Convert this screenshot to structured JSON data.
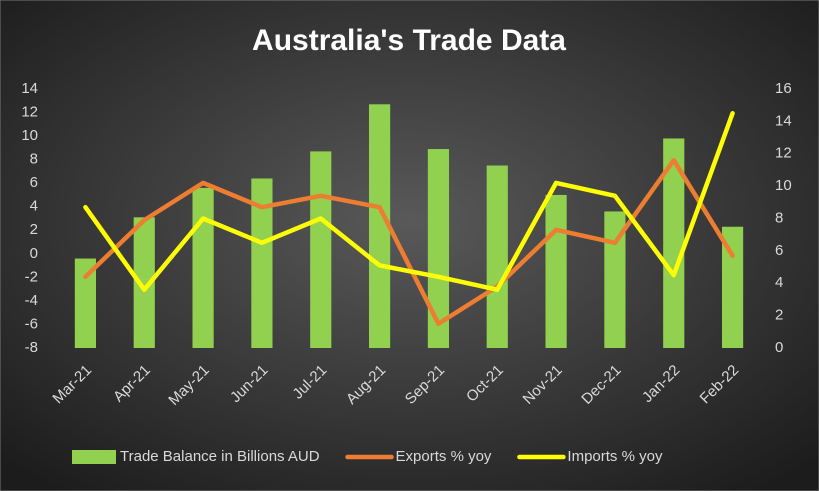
{
  "chart_data": {
    "type": "combo",
    "title": "Australia's Trade Data",
    "categories": [
      "Mar-21",
      "Apr-21",
      "May-21",
      "Jun-21",
      "Jul-21",
      "Aug-21",
      "Sep-21",
      "Oct-21",
      "Nov-21",
      "Dec-21",
      "Jan-22",
      "Feb-22"
    ],
    "series": [
      {
        "name": "Trade Balance in Billions AUD",
        "type": "bar",
        "axis": "y",
        "color": "#92d050",
        "values": [
          -0.4,
          3.1,
          5.6,
          6.4,
          8.7,
          12.7,
          8.9,
          7.5,
          5.0,
          3.6,
          9.8,
          2.3
        ]
      },
      {
        "name": "Exports % yoy",
        "type": "line",
        "axis": "y2",
        "color": "#ed7d31",
        "values": [
          4.4,
          7.9,
          10.2,
          8.7,
          9.4,
          8.7,
          1.5,
          3.8,
          7.3,
          6.5,
          11.6,
          5.7
        ]
      },
      {
        "name": "Imports % yoy",
        "type": "line",
        "axis": "y2",
        "color": "#ffff00",
        "values": [
          8.7,
          3.6,
          8.0,
          6.5,
          8.0,
          5.1,
          4.4,
          3.6,
          10.2,
          9.4,
          4.5,
          14.5
        ]
      }
    ],
    "ylim": [
      -8,
      14
    ],
    "yticks": [
      -8,
      -6,
      -4,
      -2,
      0,
      2,
      4,
      6,
      8,
      10,
      12,
      14
    ],
    "y2lim": [
      0,
      16
    ],
    "y2ticks": [
      0,
      2,
      4,
      6,
      8,
      10,
      12,
      14,
      16
    ],
    "grid": false
  }
}
